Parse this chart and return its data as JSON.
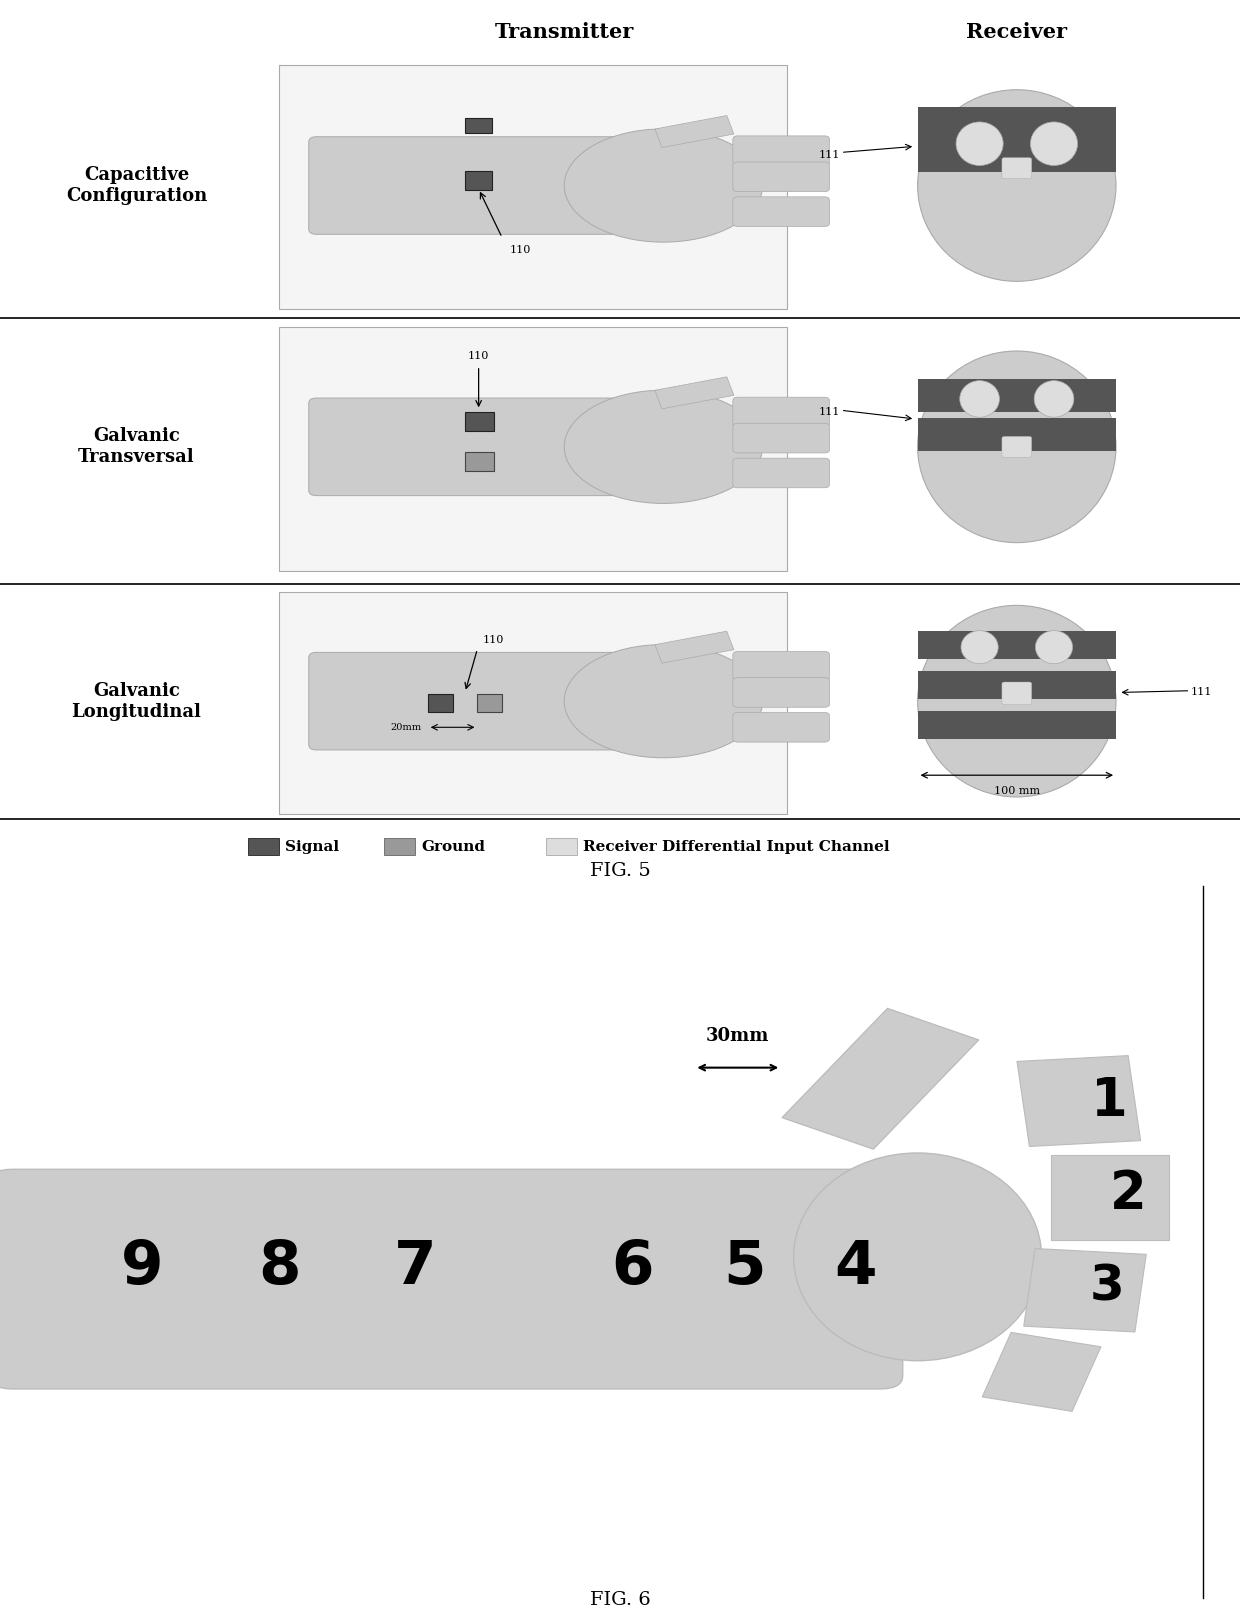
{
  "bg_color": "#ffffff",
  "skin_color": "#cccccc",
  "dark_band_color": "#555555",
  "signal_color": "#555555",
  "ground_color": "#999999",
  "receiver_channel_color": "#dddddd",
  "fig5_title": "FIG. 5",
  "fig6_title": "FIG. 6",
  "transmitter_label": "Transmitter",
  "receiver_label": "Receiver",
  "row_labels": [
    "Capacitive\nConfiguration",
    "Galvanic\nTransversal",
    "Galvanic\nLongitudinal"
  ],
  "legend_signal": "Signal",
  "legend_ground": "Ground",
  "legend_receiver": "Receiver Differential Input Channel"
}
